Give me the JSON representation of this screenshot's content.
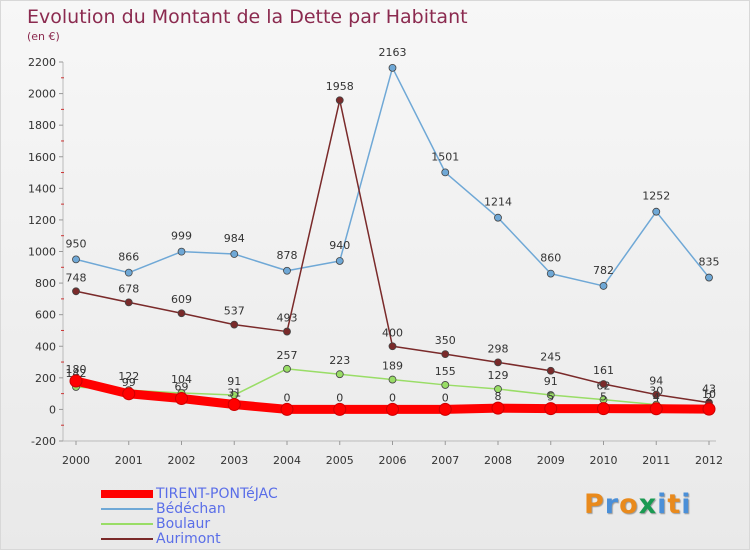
{
  "title": "Evolution du Montant de la Dette par Habitant",
  "subtitle": "(en €)",
  "logo_text": "Proxiti",
  "chart_data": {
    "type": "line",
    "x": [
      "2000",
      "2001",
      "2002",
      "2003",
      "2004",
      "2005",
      "2006",
      "2007",
      "2008",
      "2009",
      "2010",
      "2011",
      "2012"
    ],
    "ylim": [
      -200,
      2200
    ],
    "yticks": [
      -200,
      0,
      200,
      400,
      600,
      800,
      1000,
      1200,
      1400,
      1600,
      1800,
      2000,
      2200
    ],
    "grid": false,
    "legend_position": "bottom-left",
    "series": [
      {
        "name": "TIRENT-PONTéJAC",
        "color": "#ff0000",
        "values": [
          180,
          99,
          69,
          31,
          0,
          0,
          0,
          0,
          8,
          5,
          5,
          4,
          2
        ],
        "labels": [
          "180",
          "99",
          "69",
          "31",
          "0",
          "0",
          "0",
          "0",
          "8",
          "5",
          "5",
          "4",
          "2"
        ]
      },
      {
        "name": "Bédéchan",
        "color": "#6fa8d6",
        "values": [
          950,
          866,
          999,
          984,
          878,
          940,
          2163,
          1501,
          1214,
          860,
          782,
          1252,
          835
        ],
        "labels": [
          "950",
          "866",
          "999",
          "984",
          "878",
          "940",
          "2163",
          "1501",
          "1214",
          "860",
          "782",
          "1252",
          "835"
        ]
      },
      {
        "name": "Boulaur",
        "color": "#99dd66",
        "values": [
          142,
          122,
          104,
          91,
          257,
          223,
          189,
          155,
          129,
          91,
          62,
          30,
          10
        ],
        "labels": [
          "142",
          "122",
          "104",
          "91",
          "257",
          "223",
          "189",
          "155",
          "129",
          "91",
          "62",
          "30",
          "10"
        ]
      },
      {
        "name": "Aurimont",
        "color": "#7a2a2a",
        "values": [
          748,
          678,
          609,
          537,
          493,
          1958,
          400,
          350,
          298,
          245,
          161,
          94,
          43
        ],
        "labels": [
          "748",
          "678",
          "609",
          "537",
          "493",
          "1958",
          "400",
          "350",
          "298",
          "245",
          "161",
          "94",
          "43"
        ]
      }
    ]
  }
}
